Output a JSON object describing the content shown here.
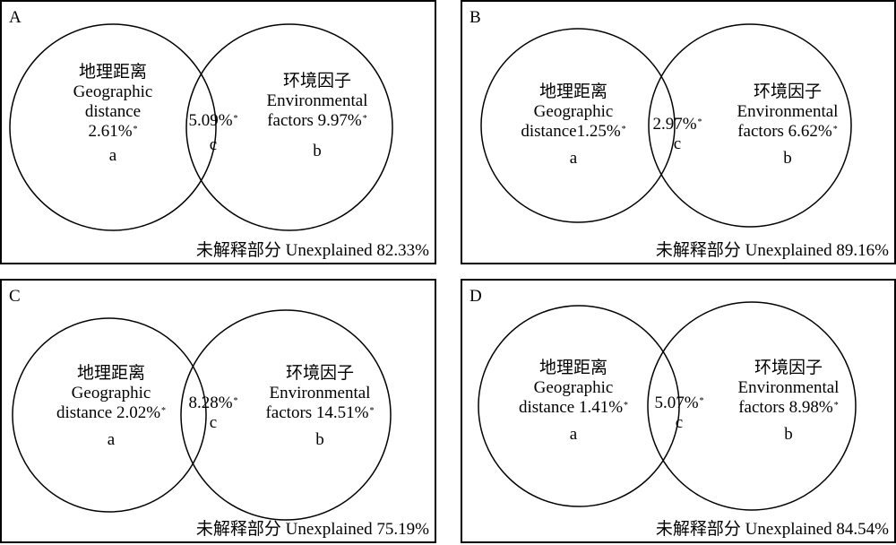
{
  "panels": [
    {
      "letter": "A",
      "a": {
        "zh": "地理距离",
        "en1": "Geographic",
        "en2": "distance",
        "pct": "2.61%",
        "mark": "*",
        "id": "a"
      },
      "b": {
        "zh": "环境因子",
        "en1": "Environmental",
        "en2": "factors 9.97%",
        "mark": "*",
        "id": "b"
      },
      "c": {
        "pct": "5.09%",
        "mark": "*",
        "id": "c"
      },
      "unexplained": "未解释部分 Unexplained 82.33%"
    },
    {
      "letter": "B",
      "a": {
        "zh": "地理距离",
        "en1": "Geographic",
        "en2": "distance1.25%",
        "mark": "*",
        "id": "a"
      },
      "b": {
        "zh": "环境因子",
        "en1": "Environmental",
        "en2": "factors 6.62%",
        "mark": "*",
        "id": "b"
      },
      "c": {
        "pct": "2.97%",
        "mark": "*",
        "id": "c"
      },
      "unexplained": "未解释部分 Unexplained 89.16%"
    },
    {
      "letter": "C",
      "a": {
        "zh": "地理距离",
        "en1": "Geographic",
        "en2": "distance 2.02%",
        "mark": "*",
        "id": "a"
      },
      "b": {
        "zh": "环境因子",
        "en1": "Environmental",
        "en2": "factors 14.51%",
        "mark": "*",
        "id": "b"
      },
      "c": {
        "pct": "8.28%",
        "mark": "*",
        "id": "c"
      },
      "unexplained": "未解释部分 Unexplained 75.19%"
    },
    {
      "letter": "D",
      "a": {
        "zh": "地理距离",
        "en1": "Geographic",
        "en2": "distance 1.41%",
        "mark": "*",
        "id": "a"
      },
      "b": {
        "zh": "环境因子",
        "en1": "Environmental",
        "en2": "factors 8.98%",
        "mark": "*",
        "id": "b"
      },
      "c": {
        "pct": "5.07%",
        "mark": "*",
        "id": "c"
      },
      "unexplained": "未解释部分 Unexplained 84.54%"
    }
  ]
}
